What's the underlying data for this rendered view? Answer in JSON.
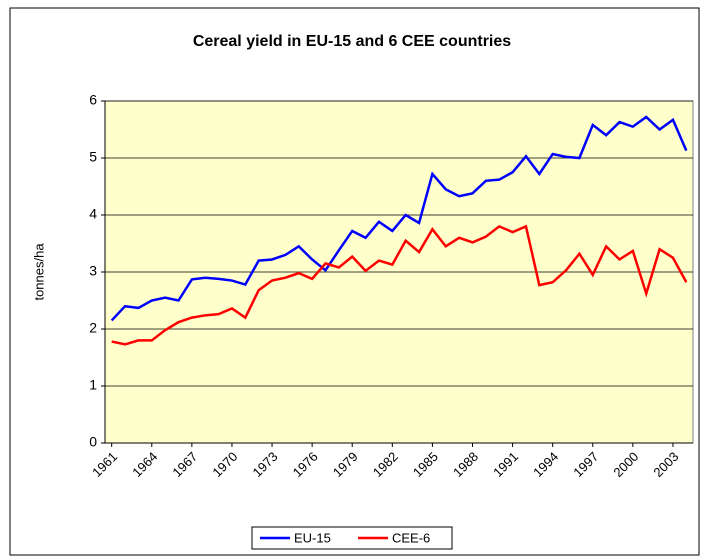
{
  "chart_data": {
    "type": "line",
    "title": "Cereal yield in EU-15 and 6 CEE countries",
    "y_label": "tonnes/ha",
    "categories": [
      "1961",
      null,
      null,
      "1964",
      null,
      null,
      "1967",
      null,
      null,
      "1970",
      null,
      null,
      "1973",
      null,
      null,
      "1976",
      null,
      null,
      "1979",
      null,
      null,
      "1982",
      null,
      null,
      "1985",
      null,
      null,
      "1988",
      null,
      null,
      "1991",
      null,
      null,
      "1994",
      null,
      null,
      "1997",
      null,
      null,
      "2000",
      null,
      null,
      "2003",
      null
    ],
    "series": [
      {
        "name": "EU-15",
        "color": "#0000ff",
        "values": [
          2.15,
          2.4,
          2.37,
          2.5,
          2.55,
          2.5,
          2.87,
          2.9,
          2.88,
          2.85,
          2.78,
          3.2,
          3.22,
          3.3,
          3.45,
          3.22,
          3.03,
          3.38,
          3.72,
          3.6,
          3.88,
          3.72,
          4.0,
          3.86,
          4.72,
          4.45,
          4.33,
          4.38,
          4.6,
          4.62,
          4.75,
          5.03,
          4.72,
          5.07,
          5.02,
          5.0,
          5.58,
          5.4,
          5.63,
          5.55,
          5.72,
          5.5,
          5.67,
          5.13
        ]
      },
      {
        "name": "CEE-6",
        "color": "#ff0000",
        "values": [
          1.78,
          1.73,
          1.8,
          1.8,
          1.98,
          2.12,
          2.2,
          2.24,
          2.26,
          2.36,
          2.2,
          2.68,
          2.85,
          2.9,
          2.98,
          2.88,
          3.15,
          3.08,
          3.27,
          3.02,
          3.2,
          3.13,
          3.55,
          3.35,
          3.75,
          3.45,
          3.6,
          3.52,
          3.62,
          3.8,
          3.7,
          3.8,
          2.77,
          2.82,
          3.03,
          3.32,
          2.95,
          3.45,
          3.22,
          3.37,
          2.62,
          3.4,
          3.25,
          2.82
        ]
      }
    ],
    "ylim": [
      0,
      6
    ],
    "yticks": [
      0,
      1,
      2,
      3,
      4,
      5,
      6
    ],
    "grid": true,
    "legend": "bottom",
    "plot_background": "#ffffcc"
  }
}
